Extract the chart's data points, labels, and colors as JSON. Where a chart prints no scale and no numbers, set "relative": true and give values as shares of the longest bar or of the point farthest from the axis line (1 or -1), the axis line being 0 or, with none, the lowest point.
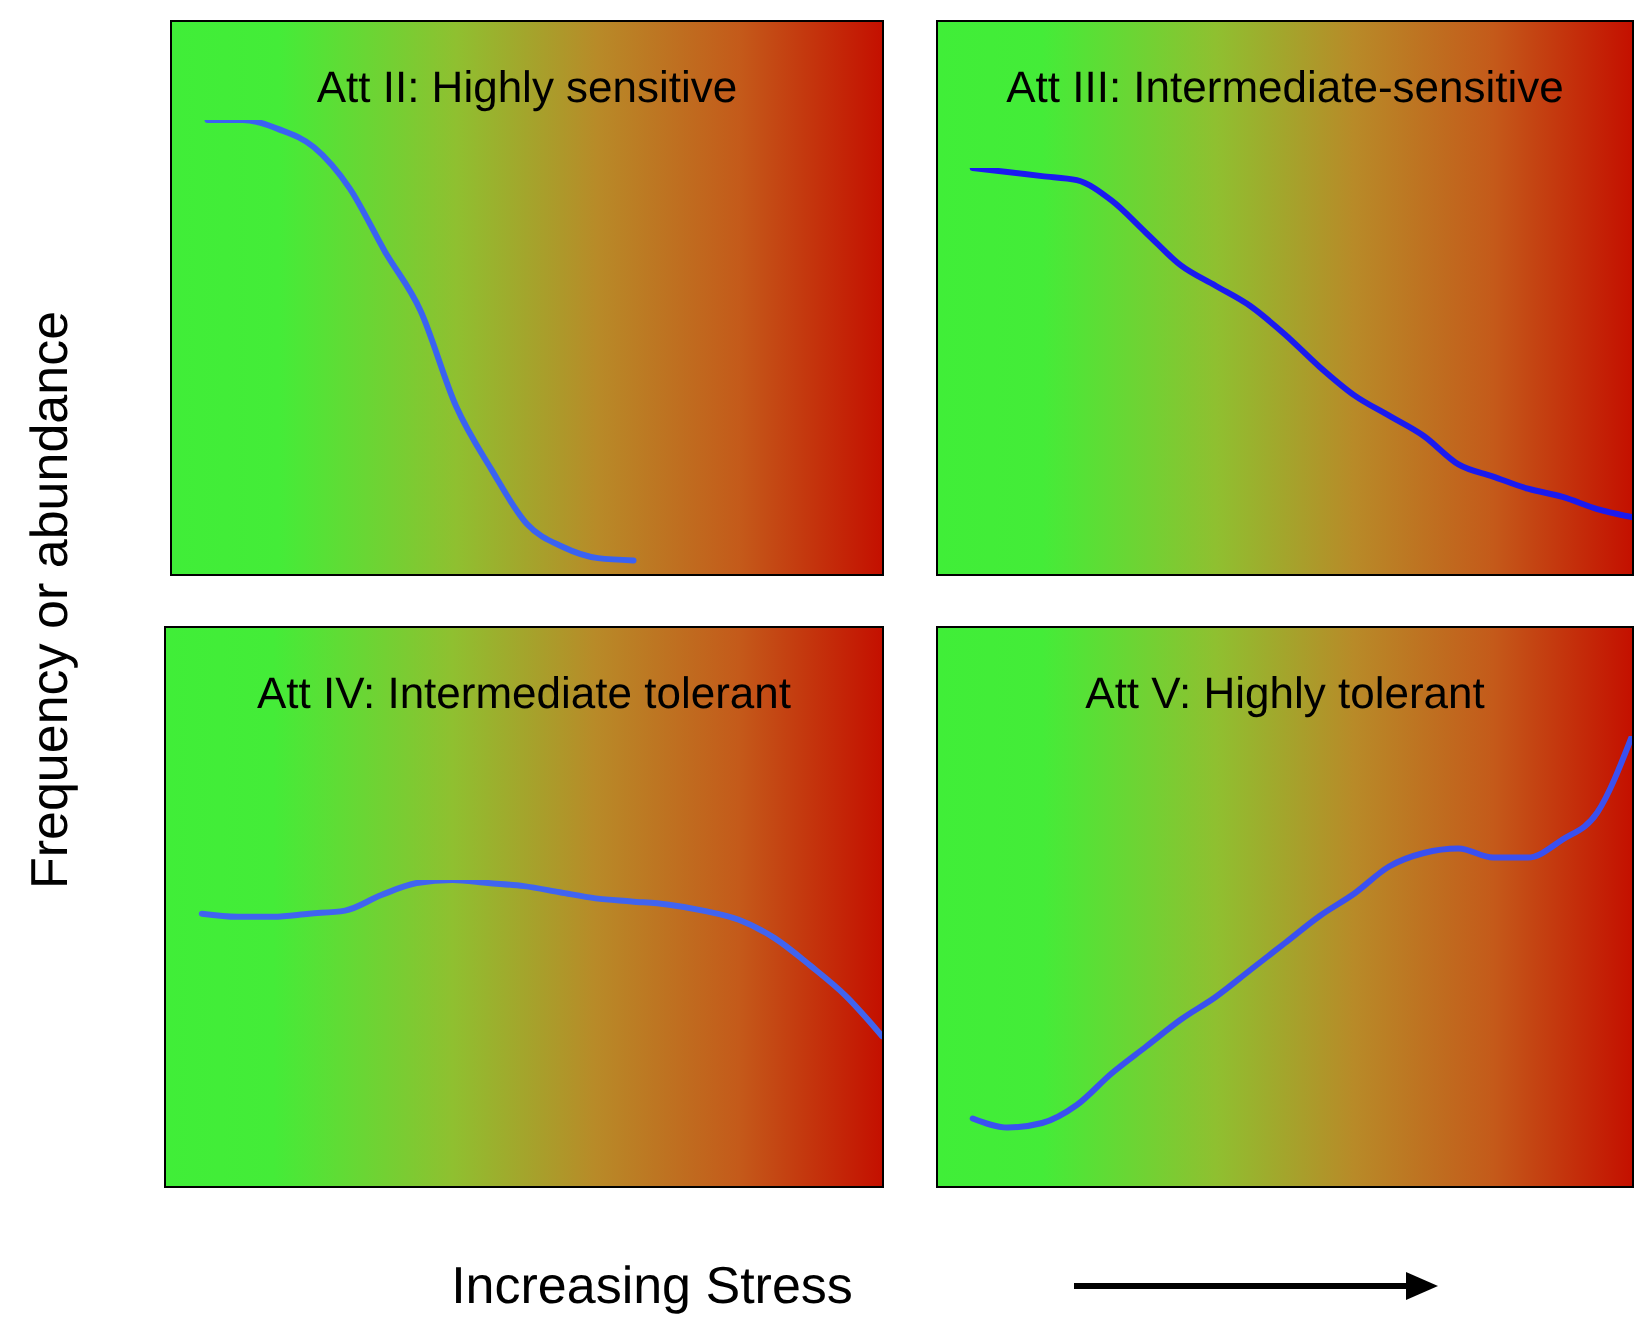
{
  "chart_data": [
    {
      "type": "line",
      "title": "Att II: Highly sensitive",
      "ylabel": "Frequency or abundance",
      "xlabel": "Increasing Stress",
      "relative": true,
      "categories": [
        null,
        null,
        null,
        null,
        null,
        null,
        null,
        null,
        null,
        null,
        null,
        null,
        null,
        null,
        null,
        null,
        null,
        null,
        null,
        null,
        null
      ],
      "series": [
        {
          "color": "#3a62f2",
          "values": [
            null,
            1.0,
            1.0,
            0.98,
            0.94,
            0.85,
            0.71,
            0.58,
            0.37,
            0.23,
            0.11,
            0.06,
            0.035,
            0.03,
            null,
            null,
            null,
            null,
            null,
            null,
            null
          ]
        }
      ]
    },
    {
      "type": "line",
      "title": "Att III: Intermediate-sensitive",
      "relative": true,
      "categories": [
        null,
        null,
        null,
        null,
        null,
        null,
        null,
        null,
        null,
        null,
        null,
        null,
        null,
        null,
        null,
        null,
        null,
        null,
        null,
        null,
        null
      ],
      "series": [
        {
          "color": "#1a1af0",
          "values": [
            null,
            1.0,
            0.99,
            0.98,
            0.97,
            0.92,
            0.84,
            0.76,
            0.71,
            0.66,
            0.59,
            0.51,
            0.44,
            0.39,
            0.34,
            0.27,
            0.24,
            0.21,
            0.19,
            0.16,
            0.14
          ]
        }
      ]
    },
    {
      "type": "line",
      "title": "Att IV: Intermediate tolerant",
      "relative": true,
      "categories": [
        null,
        null,
        null,
        null,
        null,
        null,
        null,
        null,
        null,
        null,
        null,
        null,
        null,
        null,
        null,
        null,
        null,
        null,
        null,
        null,
        null
      ],
      "series": [
        {
          "color": "#4064f0",
          "values": [
            null,
            0.89,
            0.88,
            0.88,
            0.89,
            0.9,
            0.95,
            0.99,
            1.0,
            0.99,
            0.98,
            0.96,
            0.94,
            0.93,
            0.92,
            0.9,
            0.87,
            0.81,
            0.72,
            0.62,
            0.49
          ]
        }
      ]
    },
    {
      "type": "line",
      "title": "Att V: Highly tolerant",
      "relative": true,
      "categories": [
        null,
        null,
        null,
        null,
        null,
        null,
        null,
        null,
        null,
        null,
        null,
        null,
        null,
        null,
        null,
        null,
        null,
        null,
        null,
        null,
        null
      ],
      "series": [
        {
          "color": "#3a50f0",
          "values": [
            null,
            0.15,
            0.13,
            0.14,
            0.18,
            0.25,
            0.31,
            0.37,
            0.42,
            0.48,
            0.54,
            0.6,
            0.65,
            0.71,
            0.74,
            0.75,
            0.73,
            0.73,
            0.77,
            0.83,
            1.0
          ]
        }
      ]
    }
  ]
}
